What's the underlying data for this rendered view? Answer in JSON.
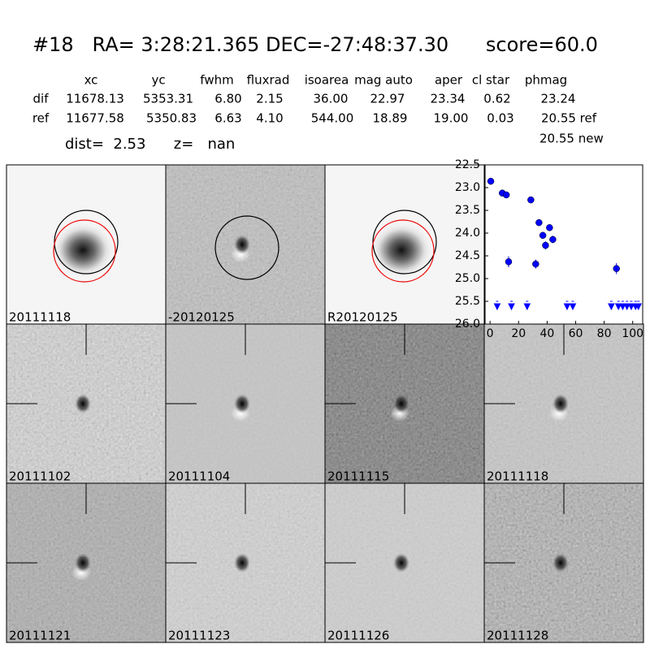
{
  "header": {
    "title": "#18   RA= 3:28:21.365 DEC=-27:48:37.30      score=60.0",
    "dist_line": "dist=  2.53      z=   nan"
  },
  "table": {
    "columns": [
      "xc",
      "yc",
      "fwhm",
      "fluxrad",
      "isoarea",
      "mag auto",
      "aper",
      "cl star",
      "phmag"
    ],
    "rows": [
      [
        "dif",
        "11678.13",
        "5353.31",
        "6.80",
        "2.15",
        "36.00",
        "22.97",
        "23.34",
        "0.62",
        "23.24"
      ],
      [
        "ref",
        "11677.58",
        "5350.83",
        "6.63",
        "4.10",
        "544.00",
        "18.89",
        "19.00",
        "0.03",
        "20.55 ref"
      ]
    ],
    "extra": "20.55 new"
  },
  "panels": [
    {
      "label": "20111118"
    },
    {
      "label": "-20120125"
    },
    {
      "label": "R20120125"
    },
    {
      "label": "20111102"
    },
    {
      "label": "20111104"
    },
    {
      "label": "20111115"
    },
    {
      "label": "20111118",
      "color": "#ff0000"
    },
    {
      "label": "20111121"
    },
    {
      "label": "20111123"
    },
    {
      "label": "20111126"
    },
    {
      "label": "20111128"
    }
  ],
  "chart_data": {
    "type": "scatter",
    "xlim": [
      -3.5,
      107
    ],
    "xticks": [
      0,
      20,
      40,
      60,
      80,
      100
    ],
    "ylim": [
      26.0,
      22.5
    ],
    "yticks": [
      {
        "value": 22.5,
        "label": "22.5"
      },
      {
        "value": 23.0,
        "label": "23.0"
      },
      {
        "value": 23.5,
        "label": "23.5"
      },
      {
        "value": 24.0,
        "label": "24.0"
      },
      {
        "value": 24.5,
        "label": "24.5"
      },
      {
        "value": 25.0,
        "label": "25.0"
      },
      {
        "value": 25.5,
        "label": "25.5"
      },
      {
        "value": 26.0,
        "label": "26.0"
      }
    ],
    "series": [
      {
        "marker": "circle",
        "color": "#0000ff",
        "x": [
          0.5,
          8.6,
          11.4,
          13,
          28.6,
          32,
          34.3,
          37,
          38.9,
          41.7,
          44,
          88.6
        ],
        "y": [
          22.86,
          23.12,
          23.16,
          24.63,
          23.27,
          24.68,
          23.77,
          24.05,
          24.27,
          23.88,
          24.14,
          24.78
        ],
        "errors": [
          0.03,
          0.03,
          0.04,
          0.12,
          0.04,
          0.1,
          0.05,
          0.07,
          0.09,
          0.06,
          0.08,
          0.12
        ]
      },
      {
        "marker": "triangle-down",
        "color": "#0000ff",
        "x": [
          5,
          15,
          26,
          54,
          58,
          85,
          90,
          93,
          96,
          99,
          102,
          104
        ],
        "y": [
          25.5,
          25.5,
          25.5,
          25.5,
          25.5,
          25.5,
          25.5,
          25.5,
          25.5,
          25.5,
          25.5,
          25.5
        ]
      }
    ]
  }
}
